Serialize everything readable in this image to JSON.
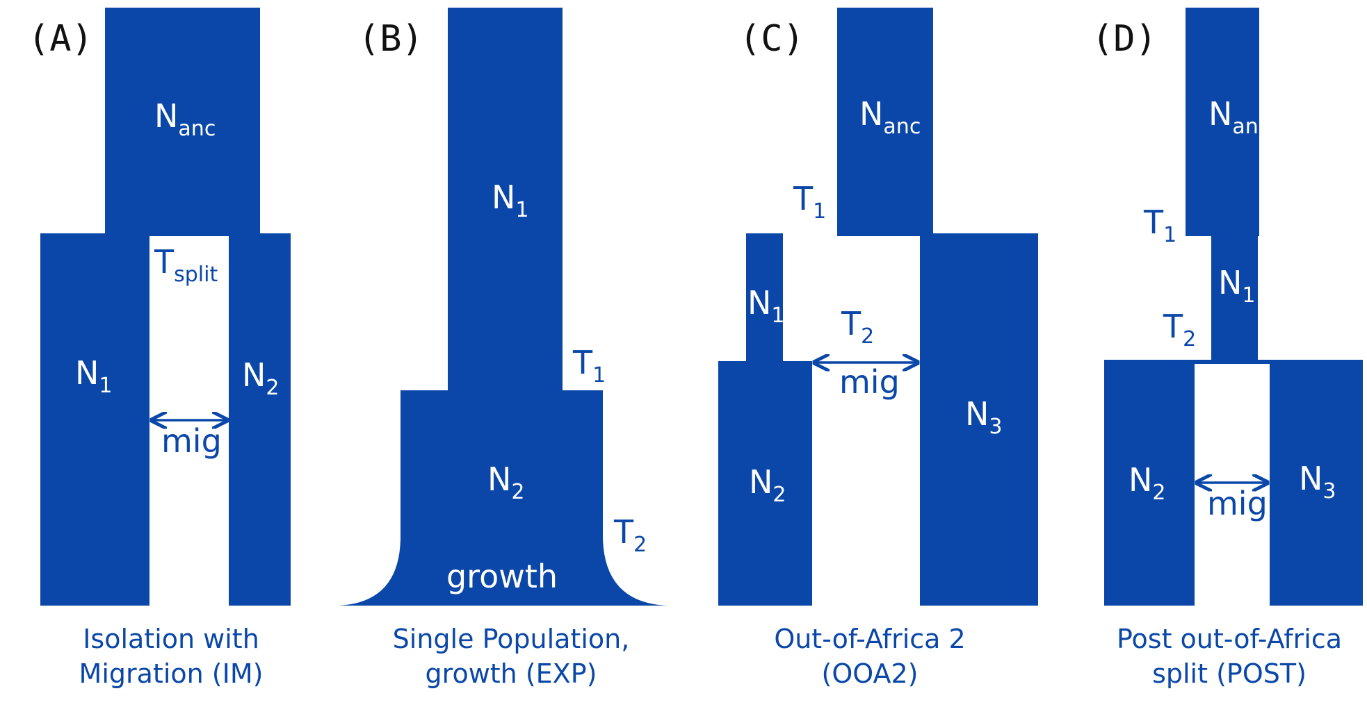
{
  "colors": {
    "block": "#0a47a8",
    "label_on_block": "#ffffff",
    "label_on_white": "#0a47a8",
    "panel_letter": "#111111"
  },
  "panels": [
    {
      "letter": "(A)",
      "caption_line1": "Isolation with",
      "caption_line2": "Migration (IM)",
      "labels": {
        "nanc_main": "N",
        "nanc_sub": "anc",
        "tsplit_main": "T",
        "tsplit_sub": "split",
        "n1_main": "N",
        "n1_sub": "1",
        "n2_main": "N",
        "n2_sub": "2",
        "mig": "mig"
      }
    },
    {
      "letter": "(B)",
      "caption_line1": "Single Population,",
      "caption_line2": "growth (EXP)",
      "labels": {
        "n1_main": "N",
        "n1_sub": "1",
        "t1_main": "T",
        "t1_sub": "1",
        "n2_main": "N",
        "n2_sub": "2",
        "t2_main": "T",
        "t2_sub": "2",
        "growth": "growth"
      }
    },
    {
      "letter": "(C)",
      "caption_line1": "Out-of-Africa 2",
      "caption_line2": "(OOA2)",
      "labels": {
        "nanc_main": "N",
        "nanc_sub": "anc",
        "t1_main": "T",
        "t1_sub": "1",
        "n1_main": "N",
        "n1_sub": "1",
        "t2_main": "T",
        "t2_sub": "2",
        "mig": "mig",
        "n2_main": "N",
        "n2_sub": "2",
        "n3_main": "N",
        "n3_sub": "3"
      }
    },
    {
      "letter": "(D)",
      "caption_line1": "Post out-of-Africa",
      "caption_line2": "split (POST)",
      "labels": {
        "nanc_main": "N",
        "nanc_sub": "anc",
        "t1_main": "T",
        "t1_sub": "1",
        "n1_main": "N",
        "n1_sub": "1",
        "t2_main": "T",
        "t2_sub": "2",
        "n2_main": "N",
        "n2_sub": "2",
        "n3_main": "N",
        "n3_sub": "3",
        "mig": "mig"
      }
    }
  ]
}
